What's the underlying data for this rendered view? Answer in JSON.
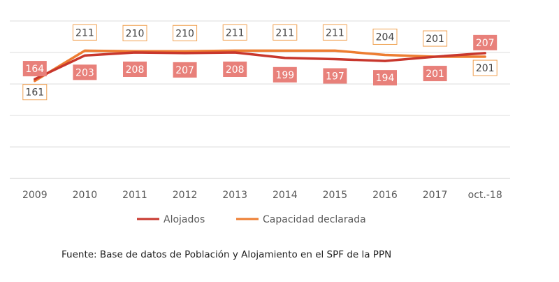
{
  "chart_data": {
    "type": "line",
    "categories": [
      "2009",
      "2010",
      "2011",
      "2012",
      "2013",
      "2014",
      "2015",
      "2016",
      "2017",
      "oct.-18"
    ],
    "series": [
      {
        "name": "Alojados",
        "color": "#c8372d",
        "label_bg": "#e8807a",
        "values": [
          164,
          203,
          208,
          207,
          208,
          199,
          197,
          194,
          201,
          207
        ]
      },
      {
        "name": "Capacidad declarada",
        "color": "#ed7d31",
        "label_border": "#f0a050",
        "values": [
          161,
          211,
          210,
          210,
          211,
          211,
          211,
          204,
          201,
          201
        ]
      }
    ],
    "ylim": [
      0,
      260
    ],
    "grid": true,
    "legend": "bottom"
  },
  "source": "Fuente: Base de datos de Población y Alojamiento en el SPF de la PPN"
}
